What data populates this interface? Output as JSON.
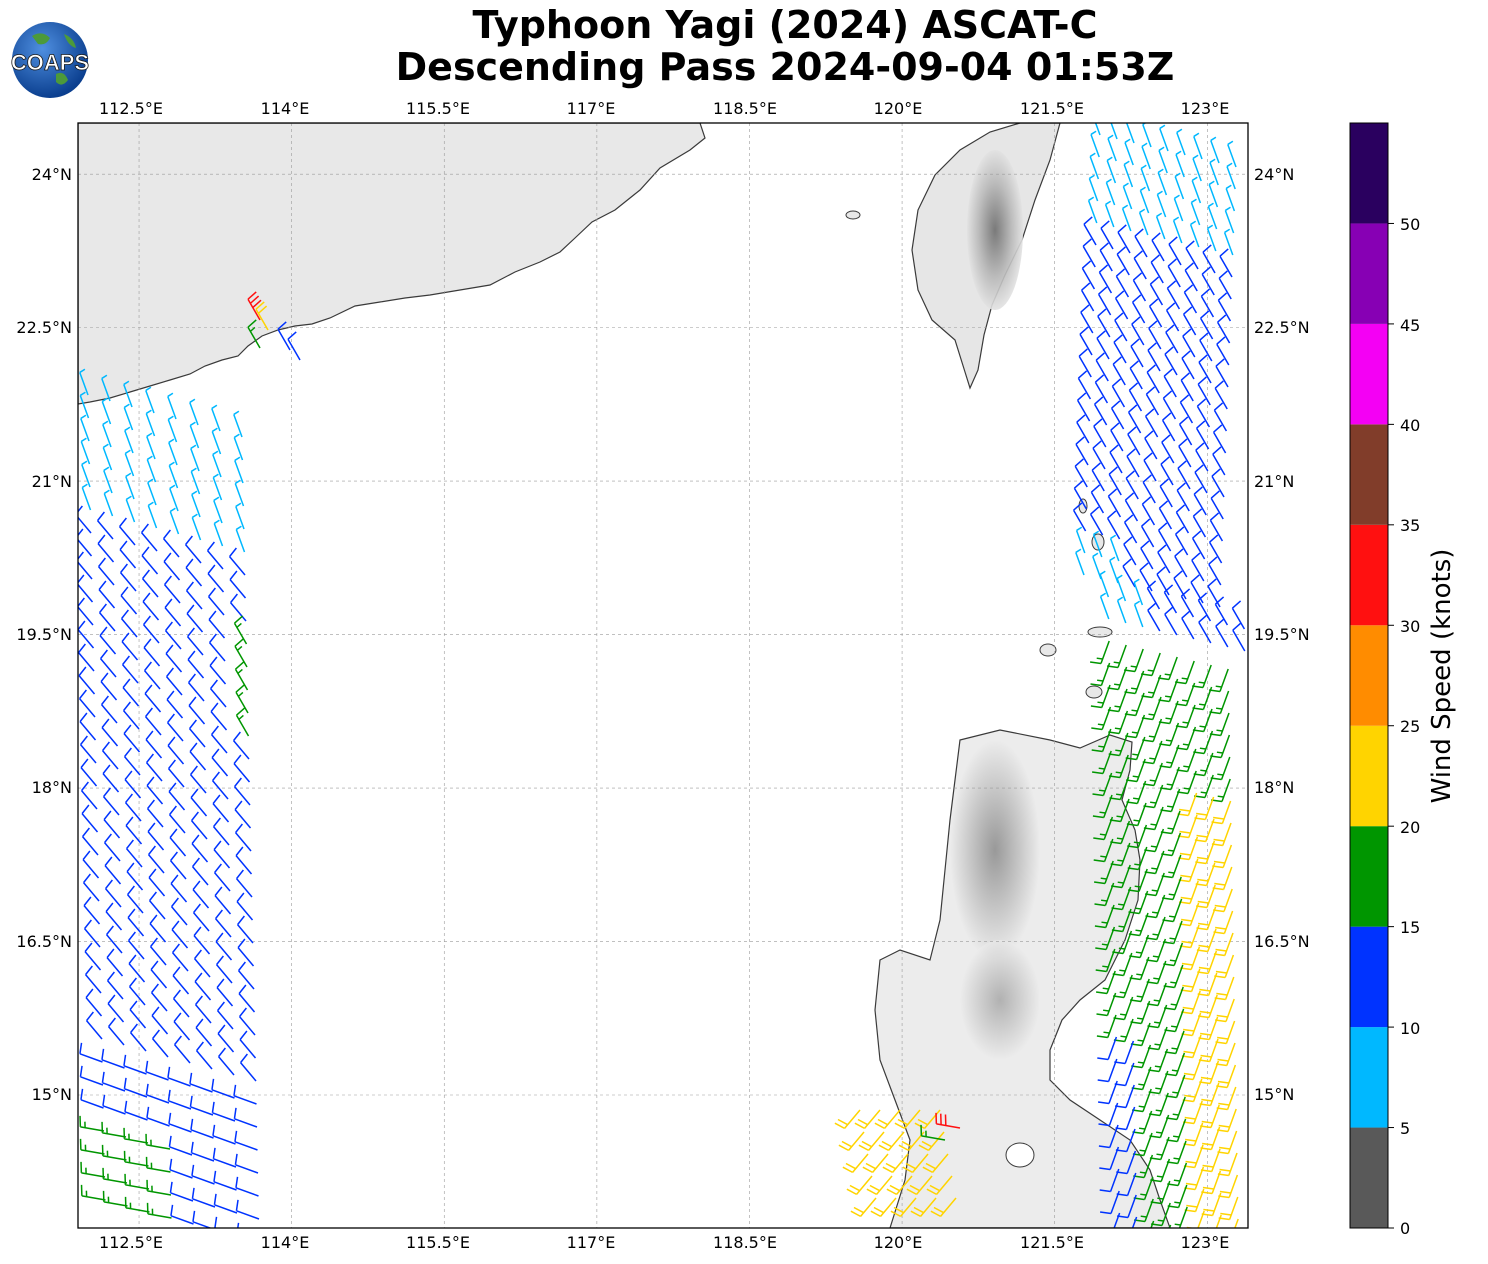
{
  "title": {
    "line1": "Typhoon Yagi (2024) ASCAT-C",
    "line2": "Descending Pass 2024-09-04 01:53Z"
  },
  "logo": {
    "text": "COAPS",
    "icon": "globe-logo-icon"
  },
  "map": {
    "lon_range": [
      111.9,
      123.4
    ],
    "lat_range": [
      13.7,
      24.5
    ],
    "lon_ticks": [
      "112.5°E",
      "114°E",
      "115.5°E",
      "117°E",
      "118.5°E",
      "120°E",
      "121.5°E",
      "123°E"
    ],
    "lat_ticks": [
      "24°N",
      "22.5°N",
      "21°N",
      "19.5°N",
      "18°N",
      "16.5°N",
      "15°N"
    ],
    "grid": true,
    "land_color": "#e6e6e6",
    "coast_color": "#333333"
  },
  "colorbar": {
    "label": "Wind Speed (knots)",
    "ticks": [
      "0",
      "5",
      "10",
      "15",
      "20",
      "25",
      "30",
      "35",
      "40",
      "45",
      "50"
    ],
    "bins": [
      {
        "min": 0,
        "max": 5,
        "color": "#595959"
      },
      {
        "min": 5,
        "max": 10,
        "color": "#00b8ff"
      },
      {
        "min": 10,
        "max": 15,
        "color": "#0033ff"
      },
      {
        "min": 15,
        "max": 20,
        "color": "#009600"
      },
      {
        "min": 20,
        "max": 25,
        "color": "#ffd400"
      },
      {
        "min": 25,
        "max": 30,
        "color": "#ff8c00"
      },
      {
        "min": 30,
        "max": 35,
        "color": "#ff1010"
      },
      {
        "min": 35,
        "max": 40,
        "color": "#813d2a"
      },
      {
        "min": 40,
        "max": 45,
        "color": "#f400f4"
      },
      {
        "min": 45,
        "max": 50,
        "color": "#8700b4"
      },
      {
        "min": 50,
        "max": 55,
        "color": "#2a005f"
      }
    ]
  }
}
